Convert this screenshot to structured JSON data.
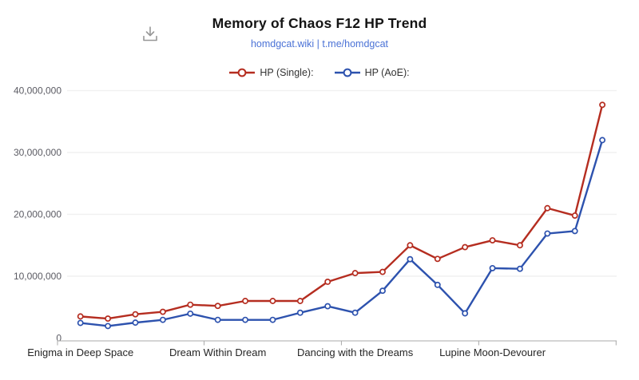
{
  "header": {
    "title": "Memory of Chaos F12 HP Trend",
    "subtitle": "homdgcat.wiki | t.me/homdgcat"
  },
  "icons": {
    "download": "download-icon"
  },
  "legend": {
    "items": [
      {
        "label": "HP (Single):",
        "color": "#b52d20"
      },
      {
        "label": "HP (AoE):",
        "color": "#2d52ae"
      }
    ]
  },
  "chart_data": {
    "type": "line",
    "title": "Memory of Chaos F12 HP Trend",
    "subtitle": "homdgcat.wiki | t.me/homdgcat",
    "categories": [
      "Enigma in Deep Space",
      "Dream Within Dream",
      "Dancing with the Dreams",
      "Lupine Moon-Devourer"
    ],
    "points_per_category": 5,
    "series": [
      {
        "name": "HP (Single):",
        "color": "#b52d20",
        "values": [
          3500000,
          3150000,
          3850000,
          4250000,
          5400000,
          5200000,
          6000000,
          6000000,
          6000000,
          9100000,
          10500000,
          10700000,
          15000000,
          12800000,
          14700000,
          15800000,
          15000000,
          21000000,
          19800000,
          37700000
        ]
      },
      {
        "name": "HP (AoE):",
        "color": "#2d52ae",
        "values": [
          2450000,
          1950000,
          2500000,
          2950000,
          3950000,
          2950000,
          2950000,
          2950000,
          4100000,
          5150000,
          4100000,
          7650000,
          12750000,
          8600000,
          4000000,
          11300000,
          11200000,
          16900000,
          17300000,
          32000000
        ]
      }
    ],
    "xlabel": "",
    "ylabel": "",
    "ylim": [
      0,
      40000000
    ],
    "grid": true,
    "legend_position": "top",
    "yticks": [
      {
        "value": 0,
        "label": "0"
      },
      {
        "value": 10000000,
        "label": "10,000,000"
      },
      {
        "value": 20000000,
        "label": "20,000,000"
      },
      {
        "value": 30000000,
        "label": "30,000,000"
      },
      {
        "value": 40000000,
        "label": "40,000,000"
      }
    ]
  }
}
